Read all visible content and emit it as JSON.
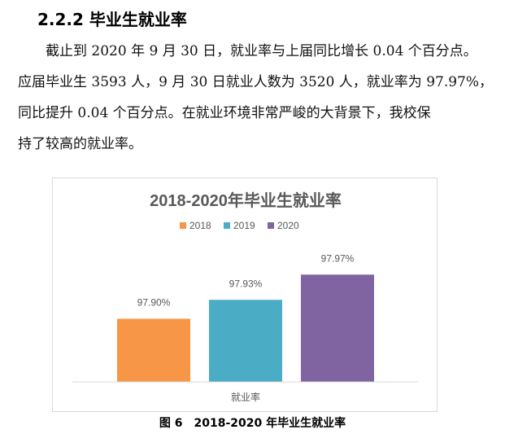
{
  "section": {
    "heading": "2.2.2 毕业生就业率"
  },
  "paragraph": {
    "lines": [
      "截止到 2020 年 9 月 30 日，就业率与上届同比增长 0.04 个百分点。",
      "应届毕业生 3593 人，9 月 30 日就业人数为 3520 人，就业率为 97.97%，",
      "同比提升  0.04  个百分点。在就业环境非常严峻的大背景下，我校保",
      "持了较高的就业率。"
    ]
  },
  "chart_data": {
    "type": "bar",
    "title": "2018-2020年毕业生就业率",
    "categories": [
      "就业率"
    ],
    "xlabel": "就业率",
    "legend_position": "top",
    "grid": false,
    "series": [
      {
        "name": "2018",
        "values": [
          97.9
        ],
        "label": "97.90%",
        "color": "#f79646"
      },
      {
        "name": "2019",
        "values": [
          97.93
        ],
        "label": "97.93%",
        "color": "#4bacc6"
      },
      {
        "name": "2020",
        "values": [
          97.97
        ],
        "label": "97.97%",
        "color": "#8064a2"
      }
    ],
    "ylim": [
      97.8,
      98.0
    ]
  },
  "caption": {
    "label": "图 6",
    "text": "2018-2020 年毕业生就业率"
  }
}
